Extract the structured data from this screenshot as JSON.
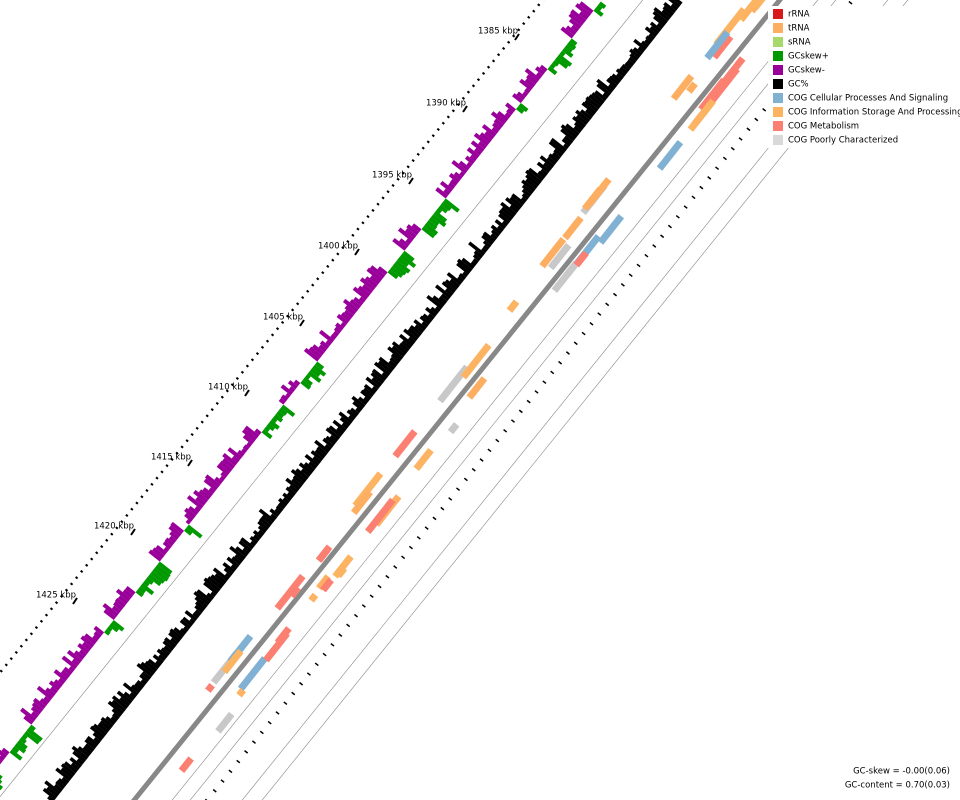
{
  "ruler": {
    "labels": [
      "1385 kbp",
      "1390 kbp",
      "1395 kbp",
      "1400 kbp",
      "1405 kbp",
      "1410 kbp",
      "1415 kbp",
      "1420 kbp",
      "1425 kbp"
    ]
  },
  "legend": {
    "items": [
      {
        "label": "rRNA",
        "color": "#d7191c"
      },
      {
        "label": "tRNA",
        "color": "#fdae61"
      },
      {
        "label": "sRNA",
        "color": "#a6d96a"
      },
      {
        "label": "GCskew+",
        "color": "#009900"
      },
      {
        "label": "GCskew-",
        "color": "#990099"
      },
      {
        "label": "GC%",
        "color": "#000000"
      },
      {
        "label": "COG Cellular Processes And Signaling",
        "color": "#80b1d3"
      },
      {
        "label": "COG Information Storage And Processing",
        "color": "#fdb462"
      },
      {
        "label": "COG Metabolism",
        "color": "#fb8072"
      },
      {
        "label": "COG Poorly Characterized",
        "color": "#d9d9d9"
      }
    ]
  },
  "footer": {
    "gc_skew": "GC-skew = -0.00(0.06)",
    "gc_content": "GC-content = 0.70(0.03)"
  }
}
